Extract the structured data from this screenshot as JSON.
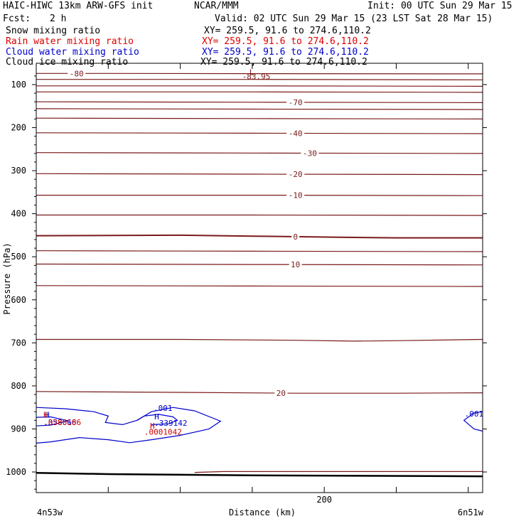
{
  "header": {
    "model": "HAIC-HIWC 13km ARW-GFS init",
    "org": "NCAR/MMM",
    "init": "Init: 00 UTC Sun 29 Mar 15",
    "fcst_label": "Fcst:",
    "fcst_value": "2 h",
    "valid": "Valid: 02 UTC Sun 29 Mar 15 (23 LST Sat 28 Mar 15)",
    "fields": [
      {
        "name": "Snow mixing ratio",
        "xy": "XY= 259.5, 91.6 to 274.6,110.2",
        "color": "#000000"
      },
      {
        "name": "Rain water mixing ratio",
        "xy": "XY= 259.5, 91.6 to 274.6,110.2",
        "color": "#e00000"
      },
      {
        "name": "Cloud water mixing ratio",
        "xy": "XY= 259.5, 91.6 to 274.6,110.2",
        "color": "#0000cc"
      },
      {
        "name": "Cloud ice mixing ratio",
        "xy": "XY= 259.5, 91.6 to 274.6,110.2",
        "color": "#000000"
      }
    ]
  },
  "chart_data": {
    "type": "contour",
    "ylabel": "Pressure (hPa)",
    "xlabel": "Distance (km)",
    "yticks": [
      100,
      200,
      300,
      400,
      500,
      600,
      700,
      800,
      900,
      1000
    ],
    "ylim": [
      1042,
      72
    ],
    "xticks": [
      200
    ],
    "xlim": [
      0,
      310
    ],
    "x_start_label": "4n53w",
    "x_end_label": "6n51w",
    "colors": {
      "temperature": "#7a1a1a",
      "cloud_water": "#0000cc",
      "rain": "#cc0000",
      "terrain": "#000000"
    },
    "isotherms": [
      {
        "label": "-80",
        "label_x": 28,
        "points": [
          [
            0,
            74
          ],
          [
            50,
            74
          ],
          [
            150,
            74.5
          ],
          [
            310,
            75
          ]
        ]
      },
      {
        "label": "",
        "points": [
          [
            0,
            88
          ],
          [
            150,
            88
          ],
          [
            310,
            89
          ]
        ]
      },
      {
        "label": "",
        "points": [
          [
            0,
            103
          ],
          [
            150,
            103
          ],
          [
            310,
            104
          ]
        ]
      },
      {
        "label": "",
        "points": [
          [
            0,
            117
          ],
          [
            150,
            117
          ],
          [
            310,
            118
          ]
        ]
      },
      {
        "label": "-70",
        "label_x": 180,
        "points": [
          [
            0,
            140
          ],
          [
            150,
            141
          ],
          [
            310,
            142
          ]
        ]
      },
      {
        "label": "",
        "points": [
          [
            0,
            156
          ],
          [
            150,
            157
          ],
          [
            310,
            158
          ]
        ]
      },
      {
        "label": "",
        "points": [
          [
            0,
            178
          ],
          [
            150,
            179
          ],
          [
            310,
            180
          ]
        ]
      },
      {
        "label": "-40",
        "label_x": 180,
        "points": [
          [
            0,
            212
          ],
          [
            150,
            213
          ],
          [
            310,
            214
          ]
        ]
      },
      {
        "label": "-30",
        "label_x": 190,
        "points": [
          [
            0,
            258
          ],
          [
            150,
            259
          ],
          [
            310,
            260
          ]
        ]
      },
      {
        "label": "-20",
        "label_x": 180,
        "points": [
          [
            0,
            307
          ],
          [
            150,
            308
          ],
          [
            310,
            309
          ]
        ]
      },
      {
        "label": "-10",
        "label_x": 180,
        "points": [
          [
            0,
            357
          ],
          [
            150,
            357
          ],
          [
            310,
            358
          ]
        ]
      },
      {
        "label": "",
        "points": [
          [
            0,
            403
          ],
          [
            150,
            403
          ],
          [
            310,
            404
          ]
        ]
      },
      {
        "label": "0",
        "label_x": 180,
        "thick": true,
        "points": [
          [
            0,
            451
          ],
          [
            100,
            450
          ],
          [
            150,
            452
          ],
          [
            220,
            455
          ],
          [
            250,
            456
          ],
          [
            310,
            456
          ]
        ]
      },
      {
        "label": "",
        "points": [
          [
            0,
            486
          ],
          [
            150,
            487
          ],
          [
            310,
            488
          ]
        ]
      },
      {
        "label": "10",
        "label_x": 180,
        "points": [
          [
            0,
            517
          ],
          [
            150,
            518
          ],
          [
            310,
            519
          ]
        ]
      },
      {
        "label": "",
        "points": [
          [
            0,
            567
          ],
          [
            150,
            568
          ],
          [
            310,
            569
          ]
        ]
      },
      {
        "label": "",
        "points": [
          [
            0,
            692
          ],
          [
            100,
            692
          ],
          [
            180,
            694
          ],
          [
            220,
            696
          ],
          [
            250,
            695
          ],
          [
            310,
            692
          ]
        ]
      },
      {
        "label": "20",
        "label_x": 170,
        "points": [
          [
            0,
            813
          ],
          [
            100,
            815
          ],
          [
            180,
            817
          ],
          [
            250,
            817
          ],
          [
            310,
            816
          ]
        ]
      },
      {
        "label": "",
        "points": [
          [
            110,
            1001
          ],
          [
            130,
            999
          ],
          [
            200,
            999
          ],
          [
            310,
            999
          ]
        ]
      }
    ],
    "terrain": [
      [
        0,
        1002
      ],
      [
        50,
        1005
      ],
      [
        150,
        1008
      ],
      [
        310,
        1010
      ]
    ],
    "cloud_water_contours": [
      {
        "label": ".001",
        "label_x": 88,
        "points": [
          [
            0,
            850
          ],
          [
            20,
            853
          ],
          [
            40,
            860
          ],
          [
            50,
            870
          ],
          [
            48,
            885
          ],
          [
            60,
            890
          ],
          [
            70,
            880
          ],
          [
            80,
            860
          ],
          [
            95,
            850
          ],
          [
            110,
            858
          ],
          [
            128,
            882
          ],
          [
            120,
            900
          ],
          [
            100,
            915
          ],
          [
            80,
            925
          ],
          [
            65,
            932
          ],
          [
            50,
            925
          ],
          [
            30,
            920
          ],
          [
            10,
            930
          ],
          [
            0,
            933
          ]
        ]
      },
      {
        "label": "",
        "points": [
          [
            70,
            880
          ],
          [
            75,
            870
          ],
          [
            85,
            866
          ],
          [
            95,
            872
          ],
          [
            98,
            880
          ],
          [
            92,
            888
          ],
          [
            80,
            890
          ]
        ]
      },
      {
        "label": "",
        "points": [
          [
            0,
            873
          ],
          [
            10,
            872
          ],
          [
            22,
            881
          ],
          [
            10,
            891
          ],
          [
            0,
            893
          ]
        ]
      },
      {
        "label": ".001",
        "label_x": 304,
        "points": [
          [
            310,
            860
          ],
          [
            304,
            863
          ],
          [
            297,
            880
          ],
          [
            304,
            900
          ],
          [
            310,
            905
          ]
        ]
      }
    ],
    "annotations": [
      {
        "text": "L",
        "x": 148,
        "p": 78,
        "color": "#7a1a1a"
      },
      {
        "text": "-83.95",
        "x": 143,
        "p": 88,
        "color": "#7a1a1a"
      },
      {
        "text": "H",
        "x": 6,
        "p": 874,
        "color": "#0000cc"
      },
      {
        "text": "H",
        "x": 5,
        "p": 874,
        "color": "#cc0000"
      },
      {
        "text": ".358066",
        "x": 5,
        "p": 891,
        "color": "#0000cc"
      },
      {
        "text": ".0380186",
        "x": 5,
        "p": 891,
        "color": "#cc0000"
      },
      {
        "text": "H",
        "x": 82,
        "p": 878,
        "color": "#0000cc"
      },
      {
        "text": ".339142",
        "x": 82,
        "p": 893,
        "color": "#0000cc"
      },
      {
        "text": "H",
        "x": 79,
        "p": 899,
        "color": "#cc0000"
      },
      {
        "text": ".0001042",
        "x": 75,
        "p": 913,
        "color": "#cc0000"
      }
    ]
  }
}
